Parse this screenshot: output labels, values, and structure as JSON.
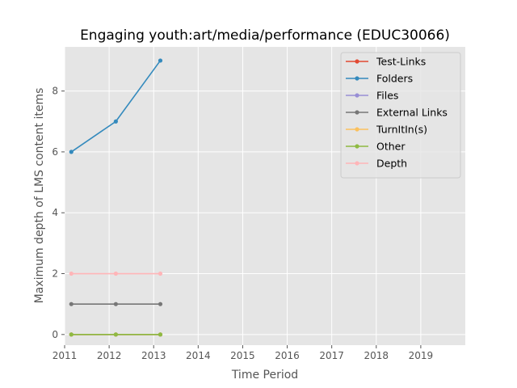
{
  "chart_data": {
    "type": "line",
    "title": "Engaging youth:art/media/performance (EDUC30066)",
    "xlabel": "Time Period",
    "ylabel": "Maximum depth of LMS content items",
    "xlim": [
      2011,
      2020
    ],
    "ylim": [
      -0.35,
      9.45
    ],
    "x_ticks": [
      2011,
      2012,
      2013,
      2014,
      2015,
      2016,
      2017,
      2018,
      2019
    ],
    "y_ticks": [
      0,
      2,
      4,
      6,
      8
    ],
    "grid": true,
    "legend_position": "top-right",
    "x": [
      2011.15,
      2012.15,
      2013.15
    ],
    "series": [
      {
        "name": "Test-Links",
        "color": "#E24A33",
        "values": [
          0,
          0,
          0
        ]
      },
      {
        "name": "Folders",
        "color": "#348ABD",
        "values": [
          6,
          7,
          9
        ]
      },
      {
        "name": "Files",
        "color": "#988ED5",
        "values": [
          0,
          0,
          0
        ]
      },
      {
        "name": "External Links",
        "color": "#777777",
        "values": [
          1,
          1,
          1
        ]
      },
      {
        "name": "TurnItIn(s)",
        "color": "#FBC15E",
        "values": [
          0,
          0,
          0
        ]
      },
      {
        "name": "Other",
        "color": "#8EBA42",
        "values": [
          0,
          0,
          0
        ]
      },
      {
        "name": "Depth",
        "color": "#FFB5B8",
        "values": [
          2,
          2,
          2
        ]
      }
    ]
  }
}
